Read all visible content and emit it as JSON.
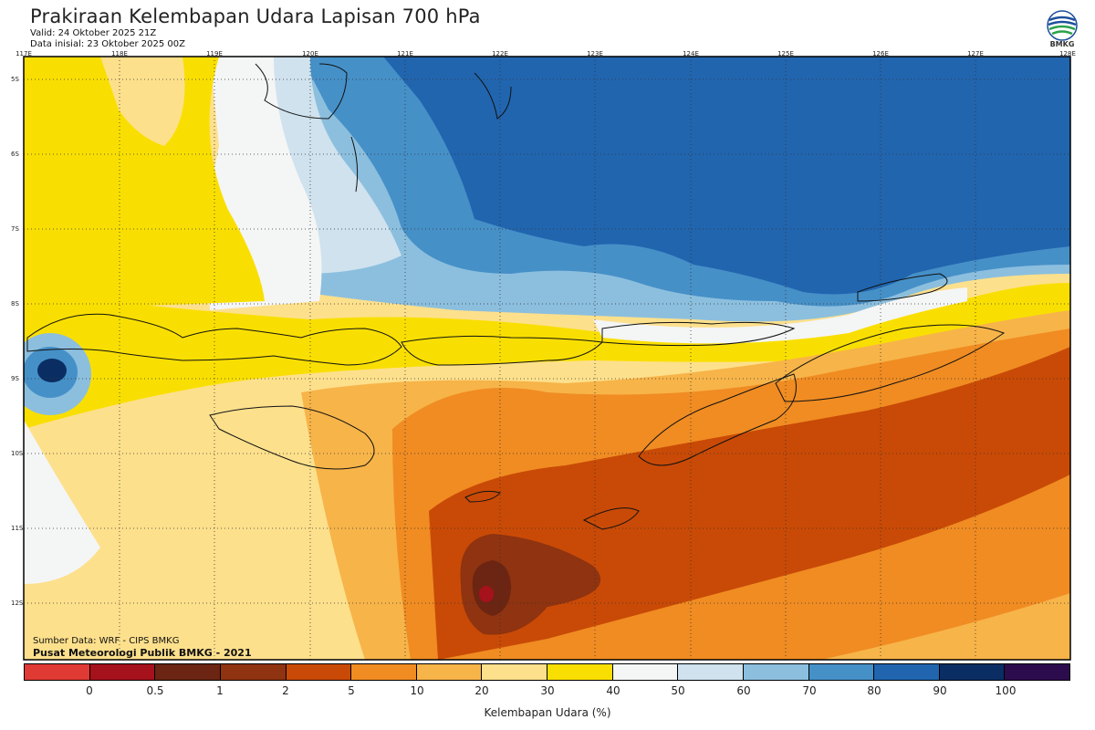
{
  "header": {
    "title": "Prakiraan Kelembapan Udara Lapisan 700 hPa",
    "valid": "Valid: 24 Oktober 2025 21Z",
    "initial": "Data inisial: 23 Oktober 2025 00Z"
  },
  "logo": {
    "text": "BMKG",
    "icon": "bmkg-logo-icon"
  },
  "axes": {
    "longitudes": [
      "117E",
      "118E",
      "119E",
      "120E",
      "121E",
      "122E",
      "123E",
      "124E",
      "125E",
      "126E",
      "127E",
      "128E"
    ],
    "latitudes": [
      "5S",
      "6S",
      "7S",
      "8S",
      "9S",
      "10S",
      "11S",
      "12S"
    ]
  },
  "credits": {
    "source": "Sumber Data: WRF - CIPS BMKG",
    "publisher": "Pusat Meteorologi Publik BMKG - 2021"
  },
  "colorbar": {
    "title": "Kelembapan Udara (%)",
    "labels": [
      "0",
      "0.5",
      "1",
      "2",
      "5",
      "10",
      "20",
      "30",
      "40",
      "50",
      "60",
      "70",
      "80",
      "90",
      "100"
    ],
    "colors": [
      "#e03a35",
      "#a5121b",
      "#6b2512",
      "#8f3310",
      "#c94a06",
      "#f08c22",
      "#f7b449",
      "#fde08c",
      "#f9df01",
      "#f4f5f5",
      "#cfe2ee",
      "#8cbfde",
      "#4690c8",
      "#2165af",
      "#0a2e63",
      "#2d0c4e"
    ]
  },
  "map_colors": {
    "ocean_far": "#fbd85a",
    "yellow": "#f9df01",
    "white": "#f4f5f5",
    "pale_blue": "#cfe2ee",
    "light_blue": "#8cbfde",
    "mid_blue": "#4690c8",
    "dark_blue": "#2165af",
    "light_orange": "#fde08c",
    "orange_light": "#f7b449",
    "orange": "#f08c22",
    "dark_orange": "#c94a06",
    "brown": "#8f3310",
    "dark_brown": "#6b2512",
    "red": "#a5121b"
  }
}
